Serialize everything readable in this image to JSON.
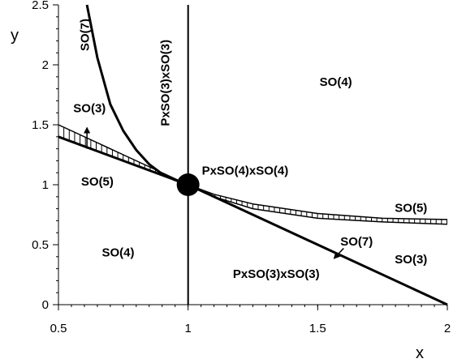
{
  "chart_data": {
    "type": "line",
    "title": "",
    "xlabel": "x",
    "ylabel": "y",
    "xlim": [
      0.5,
      2
    ],
    "ylim": [
      0,
      2.5
    ],
    "grid": false,
    "x_ticks": [
      "0.5",
      "1",
      "1.5",
      "2"
    ],
    "x_tick_values": [
      0.5,
      1,
      1.5,
      2
    ],
    "y_ticks": [
      "0",
      "0.5",
      "1",
      "1.5",
      "2",
      "2.5"
    ],
    "y_tick_values": [
      0,
      0.5,
      1,
      1.5,
      2,
      2.5
    ],
    "series": [
      {
        "x": [
          0.61,
          0.65,
          0.7,
          0.75,
          0.8,
          0.85,
          0.9,
          0.95,
          1.0
        ],
        "y": [
          2.5,
          2.06,
          1.67,
          1.45,
          1.29,
          1.17,
          1.09,
          1.04,
          1.0
        ]
      },
      {
        "x": [
          0.5,
          1.0,
          2.0
        ],
        "y": [
          1.4,
          1.0,
          0.0
        ]
      },
      {
        "x": [
          0.5,
          0.75,
          1.0
        ],
        "y": [
          1.5,
          1.25,
          1.0
        ]
      },
      {
        "x": [
          1.0,
          1.1,
          1.25,
          1.5,
          1.75,
          2.0
        ],
        "y": [
          1.0,
          0.92,
          0.84,
          0.76,
          0.72,
          0.71
        ]
      },
      {
        "x": [
          1.0,
          1.1,
          1.25,
          1.5,
          1.75,
          2.0
        ],
        "y": [
          1.0,
          0.9,
          0.8,
          0.72,
          0.69,
          0.67
        ]
      },
      {
        "x": [
          1.0,
          1.0
        ],
        "y": [
          0.0,
          2.5
        ]
      }
    ],
    "special_points": [
      {
        "x": 1.0,
        "y": 1.0
      }
    ],
    "annotations": [
      {
        "text": "SO(7)",
        "x": 0.605,
        "y": 2.25,
        "rotation": -90
      },
      {
        "text": "PxSO(3)xSO(3)",
        "x": 0.915,
        "y": 1.85,
        "rotation": -90
      },
      {
        "text": "SO(4)",
        "x": 1.57,
        "y": 1.85,
        "rotation": 0
      },
      {
        "text": "SO(3)",
        "x": 0.62,
        "y": 1.63,
        "rotation": 0
      },
      {
        "text": "SO(5)",
        "x": 0.65,
        "y": 1.02,
        "rotation": 0
      },
      {
        "text": "PxSO(4)xSO(4)",
        "x": 1.22,
        "y": 1.11,
        "rotation": 0
      },
      {
        "text": "SO(5)",
        "x": 1.86,
        "y": 0.8,
        "rotation": 0
      },
      {
        "text": "SO(7)",
        "x": 1.65,
        "y": 0.52,
        "rotation": 0
      },
      {
        "text": "SO(3)",
        "x": 1.86,
        "y": 0.37,
        "rotation": 0
      },
      {
        "text": "SO(4)",
        "x": 0.73,
        "y": 0.43,
        "rotation": 0
      },
      {
        "text": "PxSO(3)xSO(3)",
        "x": 1.34,
        "y": 0.25,
        "rotation": 0
      }
    ],
    "arrows": [
      {
        "from": [
          0.61,
          1.3
        ],
        "to": [
          0.61,
          1.47
        ]
      },
      {
        "from": [
          1.6,
          0.47
        ],
        "to": [
          1.565,
          0.39
        ]
      }
    ]
  }
}
